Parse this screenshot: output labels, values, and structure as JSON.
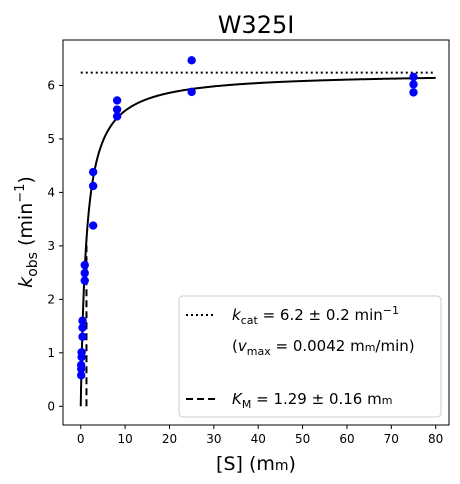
{
  "chart_data": {
    "type": "scatter",
    "title": "W325I",
    "xlabel": {
      "main": "[S] (m",
      "small_caps": "m",
      "tail": ")"
    },
    "ylabel": {
      "k": "k",
      "sub": "obs",
      "pre": " (min",
      "sup": "−1",
      "post": ")"
    },
    "xlim": [
      -4,
      83
    ],
    "ylim": [
      -0.35,
      6.85
    ],
    "x_ticks": [
      0,
      10,
      20,
      30,
      40,
      50,
      60,
      70,
      80
    ],
    "y_ticks": [
      0,
      1,
      2,
      3,
      4,
      5,
      6
    ],
    "grid": false,
    "legend_position": "lower-right",
    "data_color": "#0000ff",
    "line_color": "#000000",
    "points": [
      {
        "x": 0.1,
        "y": 0.58
      },
      {
        "x": 0.1,
        "y": 0.7
      },
      {
        "x": 0.1,
        "y": 0.77
      },
      {
        "x": 0.2,
        "y": 0.92
      },
      {
        "x": 0.2,
        "y": 1.01
      },
      {
        "x": 0.4,
        "y": 1.3
      },
      {
        "x": 0.4,
        "y": 1.47
      },
      {
        "x": 0.4,
        "y": 1.6
      },
      {
        "x": 0.9,
        "y": 2.35
      },
      {
        "x": 0.9,
        "y": 2.49
      },
      {
        "x": 0.9,
        "y": 2.64
      },
      {
        "x": 2.8,
        "y": 3.38
      },
      {
        "x": 2.8,
        "y": 4.12
      },
      {
        "x": 2.8,
        "y": 4.38
      },
      {
        "x": 8.2,
        "y": 5.42
      },
      {
        "x": 8.2,
        "y": 5.55
      },
      {
        "x": 8.2,
        "y": 5.72
      },
      {
        "x": 25,
        "y": 5.88
      },
      {
        "x": 25,
        "y": 6.47
      },
      {
        "x": 75,
        "y": 5.87
      },
      {
        "x": 75,
        "y": 6.02
      },
      {
        "x": 75,
        "y": 6.16
      }
    ],
    "fit": {
      "model": "michaelis-menten",
      "vmax": 6.24,
      "km": 1.29,
      "x_range": [
        0,
        80
      ]
    },
    "kcat_line": {
      "y": 6.24,
      "x_range": [
        0,
        80
      ],
      "style": "dotted"
    },
    "km_line": {
      "x": 1.29,
      "y_range": [
        0,
        3.12
      ],
      "style": "dashed"
    },
    "legend": {
      "kcat": {
        "k": "k",
        "sub": "cat",
        "text": " = 6.2 ± 0.2 min",
        "sup": "−1"
      },
      "vmax": {
        "open": "(",
        "v": "v",
        "sub": "max",
        "text": " = 0.0042 m",
        "small_caps": "m",
        "tail": "/min)"
      },
      "km": {
        "k": "K",
        "sub": "M",
        "text": " = 1.29 ± 0.16 m",
        "small_caps": "m"
      }
    }
  }
}
